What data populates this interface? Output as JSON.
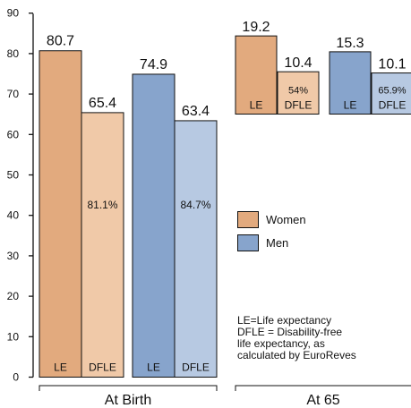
{
  "chart_data": {
    "type": "bar",
    "ylim": [
      0,
      90
    ],
    "yticks": [
      "0",
      "10",
      "20",
      "30",
      "40",
      "50",
      "60",
      "70",
      "80",
      "90"
    ],
    "groups": [
      {
        "label": "At Birth",
        "bars": [
          {
            "series": "Women",
            "kind": "LE",
            "value": 80.7,
            "value_label": "80.7",
            "bar_label": "LE",
            "pct": "",
            "color": "#e2aa7e"
          },
          {
            "series": "Women",
            "kind": "DFLE",
            "value": 65.4,
            "value_label": "65.4",
            "bar_label": "DFLE",
            "pct": "81.1%",
            "color": "#f0c9a8"
          },
          {
            "series": "Men",
            "kind": "LE",
            "value": 74.9,
            "value_label": "74.9",
            "bar_label": "LE",
            "pct": "",
            "color": "#87a4cc"
          },
          {
            "series": "Men",
            "kind": "DFLE",
            "value": 63.4,
            "value_label": "63.4",
            "bar_label": "DFLE",
            "pct": "84.7%",
            "color": "#b7c9e2"
          }
        ]
      },
      {
        "label": "At 65",
        "bars": [
          {
            "series": "Women",
            "kind": "LE",
            "value": 19.2,
            "value_label": "19.2",
            "bar_label": "LE",
            "pct": "",
            "color": "#e2aa7e"
          },
          {
            "series": "Women",
            "kind": "DFLE",
            "value": 10.4,
            "value_label": "10.4",
            "bar_label": "DFLE",
            "pct": "54%",
            "color": "#f0c9a8"
          },
          {
            "series": "Men",
            "kind": "LE",
            "value": 15.3,
            "value_label": "15.3",
            "bar_label": "LE",
            "pct": "",
            "color": "#87a4cc"
          },
          {
            "series": "Men",
            "kind": "DFLE",
            "value": 10.1,
            "value_label": "10.1",
            "bar_label": "DFLE",
            "pct": "65.9%",
            "color": "#b7c9e2"
          }
        ]
      }
    ],
    "legend": [
      {
        "label": "Women",
        "color": "#e2aa7e"
      },
      {
        "label": "Men",
        "color": "#87a4cc"
      }
    ],
    "note": [
      "LE=Life expectancy",
      "DFLE = Disability-free",
      "life expectancy, as",
      "calculated by EuroReves"
    ]
  }
}
